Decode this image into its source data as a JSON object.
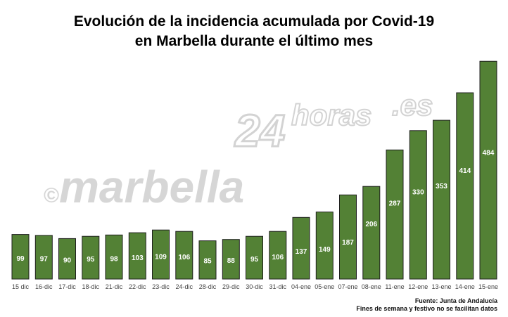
{
  "chart_data": {
    "type": "bar",
    "title_lines": [
      "Evolución de la incidencia acumulada por Covid-19",
      "en Marbella durante el último mes"
    ],
    "categories": [
      "15 dic",
      "16-dic",
      "17-dic",
      "18-dic",
      "21-dic",
      "22-dic",
      "23-dic",
      "24-dic",
      "28-dic",
      "29-dic",
      "30-dic",
      "31-dic",
      "04-ene",
      "05-ene",
      "07-ene",
      "08-ene",
      "11-ene",
      "12-ene",
      "13-ene",
      "14-ene",
      "15-ene"
    ],
    "values": [
      99,
      97,
      90,
      95,
      98,
      103,
      109,
      106,
      85,
      88,
      95,
      106,
      137,
      149,
      187,
      206,
      287,
      330,
      353,
      414,
      484
    ],
    "ylim": [
      0,
      500
    ],
    "grid": false,
    "bar_color": "#538135",
    "data_labels": true,
    "source_lines": [
      "Fuente: Junta de Andalucía",
      "Fines de semana y festivo no se facilitan datos"
    ]
  },
  "watermark": {
    "copyright": "©",
    "part1": "marbella",
    "part2": "24",
    "part3": "horas",
    "part4": ".es"
  }
}
